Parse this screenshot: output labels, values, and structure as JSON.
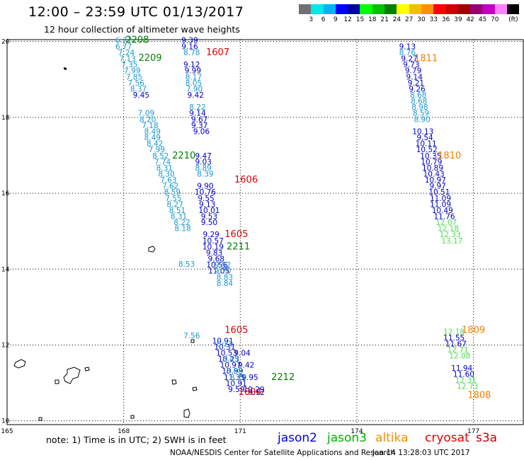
{
  "header": {
    "title": "12:00 – 23:59 UTC 01/13/2017",
    "subtitle": "12 hour collection of altimeter wave heights"
  },
  "scale": {
    "colors": [
      "#707070",
      "#00e8e8",
      "#00b4f0",
      "#0000ff",
      "#0000a0",
      "#00ff00",
      "#00c000",
      "#008000",
      "#ffff00",
      "#f0c000",
      "#ff9000",
      "#ff0000",
      "#d00000",
      "#a00000",
      "#900070",
      "#c000c0",
      "#ff80ff",
      "#000000"
    ],
    "labels": [
      "3",
      "6",
      "9",
      "12",
      "15",
      "18",
      "21",
      "24",
      "27",
      "30",
      "33",
      "36",
      "39",
      "42",
      "45",
      "70"
    ],
    "unit": "(ft)"
  },
  "axes": {
    "x_ticks": [
      "165",
      "168",
      "171",
      "174",
      "177"
    ],
    "y_ticks": [
      "20",
      "18",
      "16",
      "14",
      "12",
      "10"
    ]
  },
  "tracks": [
    {
      "satellite": "jason2",
      "color": "#1c98d0",
      "points": [
        [
          "6.77",
          168.0,
          19.97
        ],
        [
          "6.77",
          168.0,
          19.8
        ],
        [
          "7.24",
          168.07,
          19.64
        ],
        [
          "7.13",
          168.1,
          19.48
        ],
        [
          "7.35",
          168.15,
          19.32
        ],
        [
          "7.99",
          168.22,
          19.16
        ],
        [
          "7.85",
          168.27,
          19.0
        ],
        [
          "7.56",
          168.32,
          18.84
        ],
        [
          "8.37",
          168.38,
          18.68
        ],
        [
          "7.09",
          168.58,
          18.04
        ],
        [
          "8.20",
          168.62,
          17.88
        ],
        [
          "7.18",
          168.68,
          17.72
        ],
        [
          "8.49",
          168.74,
          17.56
        ],
        [
          "8.49",
          168.74,
          17.4
        ],
        [
          "8.42",
          168.8,
          17.24
        ],
        [
          "7.99",
          168.85,
          17.08
        ],
        [
          "8.52",
          168.95,
          16.92
        ],
        [
          "7.74",
          169.0,
          16.76
        ],
        [
          "8.31",
          169.05,
          16.6
        ],
        [
          "8.30",
          169.1,
          16.44
        ],
        [
          "7.63",
          169.15,
          16.28
        ],
        [
          "7.62",
          169.2,
          16.12
        ],
        [
          "8.59",
          169.25,
          15.96
        ],
        [
          "7.55",
          169.28,
          15.8
        ],
        [
          "8.27",
          169.32,
          15.64
        ],
        [
          "8.51",
          169.38,
          15.48
        ],
        [
          "8.31",
          169.42,
          15.32
        ],
        [
          "8.22",
          169.5,
          15.16
        ],
        [
          "8.18",
          169.52,
          15.0
        ],
        [
          "8.53",
          169.62,
          14.06
        ],
        [
          "7.56",
          169.75,
          12.18
        ]
      ]
    },
    {
      "satellite": "jason2",
      "color": "#0000c0",
      "points": [
        [
          "9.39",
          169.7,
          19.97
        ],
        [
          "9.16",
          169.7,
          19.8
        ],
        [
          "9.12",
          169.75,
          19.32
        ],
        [
          "9.99",
          169.78,
          19.16
        ],
        [
          "9.45",
          168.45,
          18.52
        ],
        [
          "9.42",
          169.85,
          18.52
        ],
        [
          "9.14",
          169.9,
          18.04
        ],
        [
          "9.67",
          169.95,
          17.88
        ],
        [
          "9.37",
          169.95,
          17.72
        ],
        [
          "9.06",
          170.0,
          17.56
        ],
        [
          "9.47",
          170.05,
          16.92
        ],
        [
          "9.03",
          170.05,
          16.76
        ],
        [
          "9.90",
          170.1,
          16.12
        ],
        [
          "10.76",
          170.1,
          15.96
        ],
        [
          "9.55",
          170.12,
          15.8
        ],
        [
          "9.13",
          170.15,
          15.64
        ],
        [
          "10.01",
          170.2,
          15.48
        ],
        [
          "9.53",
          170.2,
          15.32
        ],
        [
          "9.50",
          170.2,
          15.16
        ],
        [
          "9.29",
          170.25,
          14.84
        ],
        [
          "10.57",
          170.3,
          14.68
        ],
        [
          "10.19",
          170.3,
          14.52
        ],
        [
          "9.83",
          170.33,
          14.36
        ],
        [
          "9.68",
          170.38,
          14.2
        ],
        [
          "10.56",
          170.4,
          14.04
        ],
        [
          "11.05",
          170.45,
          13.88
        ],
        [
          "10.91",
          170.55,
          12.04
        ],
        [
          "10.31",
          170.6,
          11.88
        ],
        [
          "10.53",
          170.65,
          11.72
        ],
        [
          "10.23",
          170.7,
          11.56
        ],
        [
          "10.97",
          170.75,
          11.4
        ],
        [
          "10.99",
          170.8,
          11.24
        ],
        [
          "11.35",
          170.85,
          11.08
        ],
        [
          "10.91",
          170.9,
          10.92
        ],
        [
          "9.59",
          170.9,
          10.76
        ],
        [
          "9.04",
          171.05,
          11.72
        ],
        [
          "9.42",
          171.15,
          11.4
        ],
        [
          "9.95",
          171.25,
          11.08
        ],
        [
          "10.29",
          171.35,
          10.76
        ],
        [
          "9.12",
          171.42,
          10.68
        ]
      ]
    },
    {
      "satellite": "jason2",
      "color": "#0000c0",
      "points": [
        [
          "9.13",
          175.3,
          19.8
        ],
        [
          "9.27",
          175.35,
          19.48
        ],
        [
          "9.73",
          175.4,
          19.32
        ],
        [
          "9.79",
          175.45,
          19.16
        ],
        [
          "9.14",
          175.48,
          19.0
        ],
        [
          "9.21",
          175.52,
          18.84
        ],
        [
          "9.26",
          175.55,
          18.68
        ],
        [
          "10.13",
          175.7,
          17.56
        ],
        [
          "9.54",
          175.75,
          17.4
        ],
        [
          "10.11",
          175.78,
          17.24
        ],
        [
          "10.52",
          175.8,
          17.08
        ],
        [
          "10.35",
          175.9,
          16.92
        ],
        [
          "10.79",
          175.92,
          16.76
        ],
        [
          "10.89",
          175.95,
          16.6
        ],
        [
          "10.43",
          175.98,
          16.44
        ],
        [
          "10.97",
          176.02,
          16.28
        ],
        [
          "9.97",
          176.08,
          16.12
        ],
        [
          "10.51",
          176.12,
          15.96
        ],
        [
          "11.09",
          176.15,
          15.8
        ],
        [
          "11.09",
          176.15,
          15.64
        ],
        [
          "10.49",
          176.2,
          15.48
        ],
        [
          "11.76",
          176.25,
          15.32
        ],
        [
          "11.55",
          176.5,
          12.12
        ],
        [
          "11.67",
          176.55,
          11.96
        ],
        [
          "11.94",
          176.7,
          11.32
        ],
        [
          "11.60",
          176.75,
          11.16
        ]
      ]
    },
    {
      "satellite": "jason2",
      "color": "#1c98d0",
      "points": [
        [
          "8.76",
          175.3,
          19.64
        ],
        [
          "8.68",
          175.58,
          18.52
        ],
        [
          "8.68",
          175.6,
          18.36
        ],
        [
          "8.98",
          175.62,
          18.2
        ],
        [
          "8.59",
          175.65,
          18.04
        ],
        [
          "8.90",
          175.68,
          17.88
        ]
      ]
    },
    {
      "satellite": "jason3",
      "color": "#50dc50",
      "points": [
        [
          "12.07",
          176.3,
          15.16
        ],
        [
          "12.18",
          176.35,
          15.0
        ],
        [
          "12.33",
          176.4,
          14.84
        ],
        [
          "13.17",
          176.45,
          14.68
        ],
        [
          "12.18",
          176.5,
          12.28
        ],
        [
          "12.71",
          176.6,
          11.8
        ],
        [
          "12.08",
          176.65,
          11.64
        ],
        [
          "12.31",
          176.8,
          11.0
        ],
        [
          "12.73",
          176.85,
          10.84
        ]
      ]
    },
    {
      "satellite": "jason3",
      "color": "#1c98d0",
      "points": [
        [
          "8.78",
          169.75,
          19.64
        ],
        [
          "8.17",
          169.8,
          19.0
        ],
        [
          "8.05",
          169.8,
          18.84
        ],
        [
          "7.90",
          169.82,
          18.68
        ],
        [
          "8.22",
          169.9,
          18.2
        ],
        [
          "8.89",
          170.05,
          16.6
        ],
        [
          "8.39",
          170.1,
          16.44
        ],
        [
          "8.22",
          170.6,
          11.96
        ],
        [
          "8.45",
          170.75,
          11.56
        ],
        [
          "8.88",
          170.85,
          11.24
        ],
        [
          "8.74",
          170.95,
          11.08
        ],
        [
          "9.52",
          170.55,
          14.04
        ],
        [
          "9.70",
          170.55,
          13.88
        ],
        [
          "8.83",
          170.6,
          13.72
        ],
        [
          "8.84",
          170.6,
          13.56
        ]
      ]
    }
  ],
  "pass_labels": [
    {
      "text": "2208",
      "color": "#008000",
      "lon": 168.35,
      "lat": 19.97
    },
    {
      "text": "2209",
      "color": "#008000",
      "lon": 168.68,
      "lat": 19.49
    },
    {
      "text": "1607",
      "color": "#e00000",
      "lon": 170.42,
      "lat": 19.64
    },
    {
      "text": "1811",
      "color": "#f08000",
      "lon": 175.78,
      "lat": 19.48
    },
    {
      "text": "2210",
      "color": "#008000",
      "lon": 169.55,
      "lat": 16.92
    },
    {
      "text": "1606",
      "color": "#e00000",
      "lon": 171.15,
      "lat": 16.28
    },
    {
      "text": "1810",
      "color": "#f08000",
      "lon": 176.38,
      "lat": 16.92
    },
    {
      "text": "1605",
      "color": "#e00000",
      "lon": 170.9,
      "lat": 14.84
    },
    {
      "text": "2211",
      "color": "#008000",
      "lon": 170.95,
      "lat": 14.52
    },
    {
      "text": "1605",
      "color": "#e00000",
      "lon": 170.9,
      "lat": 12.32
    },
    {
      "text": "1809",
      "color": "#f08000",
      "lon": 177.0,
      "lat": 12.32
    },
    {
      "text": "2212",
      "color": "#008000",
      "lon": 172.1,
      "lat": 11.08
    },
    {
      "text": "1604",
      "color": "#e00000",
      "lon": 171.25,
      "lat": 10.68
    },
    {
      "text": "1808",
      "color": "#f08000",
      "lon": 177.15,
      "lat": 10.6
    }
  ],
  "note": "note:  1) Time is in UTC;  2) SWH is in feet",
  "legend": [
    {
      "name": "jason2",
      "color": "#0000e0"
    },
    {
      "name": "jason3",
      "color": "#00b000"
    },
    {
      "name": "altika",
      "color": "#f09000"
    },
    {
      "name": "cryosat",
      "color": "#e00000"
    },
    {
      "name": "s3a",
      "color": "#c00000"
    }
  ],
  "footer": {
    "credit": "NOAA/NESDIS Center for Satellite Applications and Research",
    "timestamp": "Jan 14 13:28:03 UTC 2017"
  }
}
